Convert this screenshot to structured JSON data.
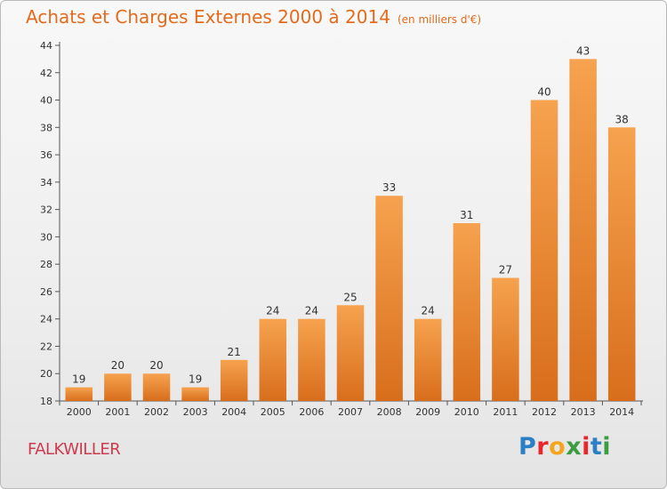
{
  "title": "Achats et Charges Externes 2000 à 2014",
  "subtitle": "(en milliers d'€)",
  "location": "FALKWILLER",
  "logo": "Proxiti",
  "colors": {
    "bar_top": "#f6a24e",
    "bar_bottom": "#d86e1c",
    "title": "#e46b1b",
    "location": "#cf3a4e"
  },
  "chart_data": {
    "type": "bar",
    "categories": [
      "2000",
      "2001",
      "2002",
      "2003",
      "2004",
      "2005",
      "2006",
      "2007",
      "2008",
      "2009",
      "2010",
      "2011",
      "2012",
      "2013",
      "2014"
    ],
    "values": [
      19,
      20,
      20,
      19,
      21,
      24,
      24,
      25,
      33,
      24,
      31,
      27,
      40,
      43,
      38
    ],
    "ylim": [
      18,
      44
    ],
    "yticks": [
      18,
      20,
      22,
      24,
      26,
      28,
      30,
      32,
      34,
      36,
      38,
      40,
      42,
      44
    ],
    "grid": false,
    "data_labels": true
  }
}
